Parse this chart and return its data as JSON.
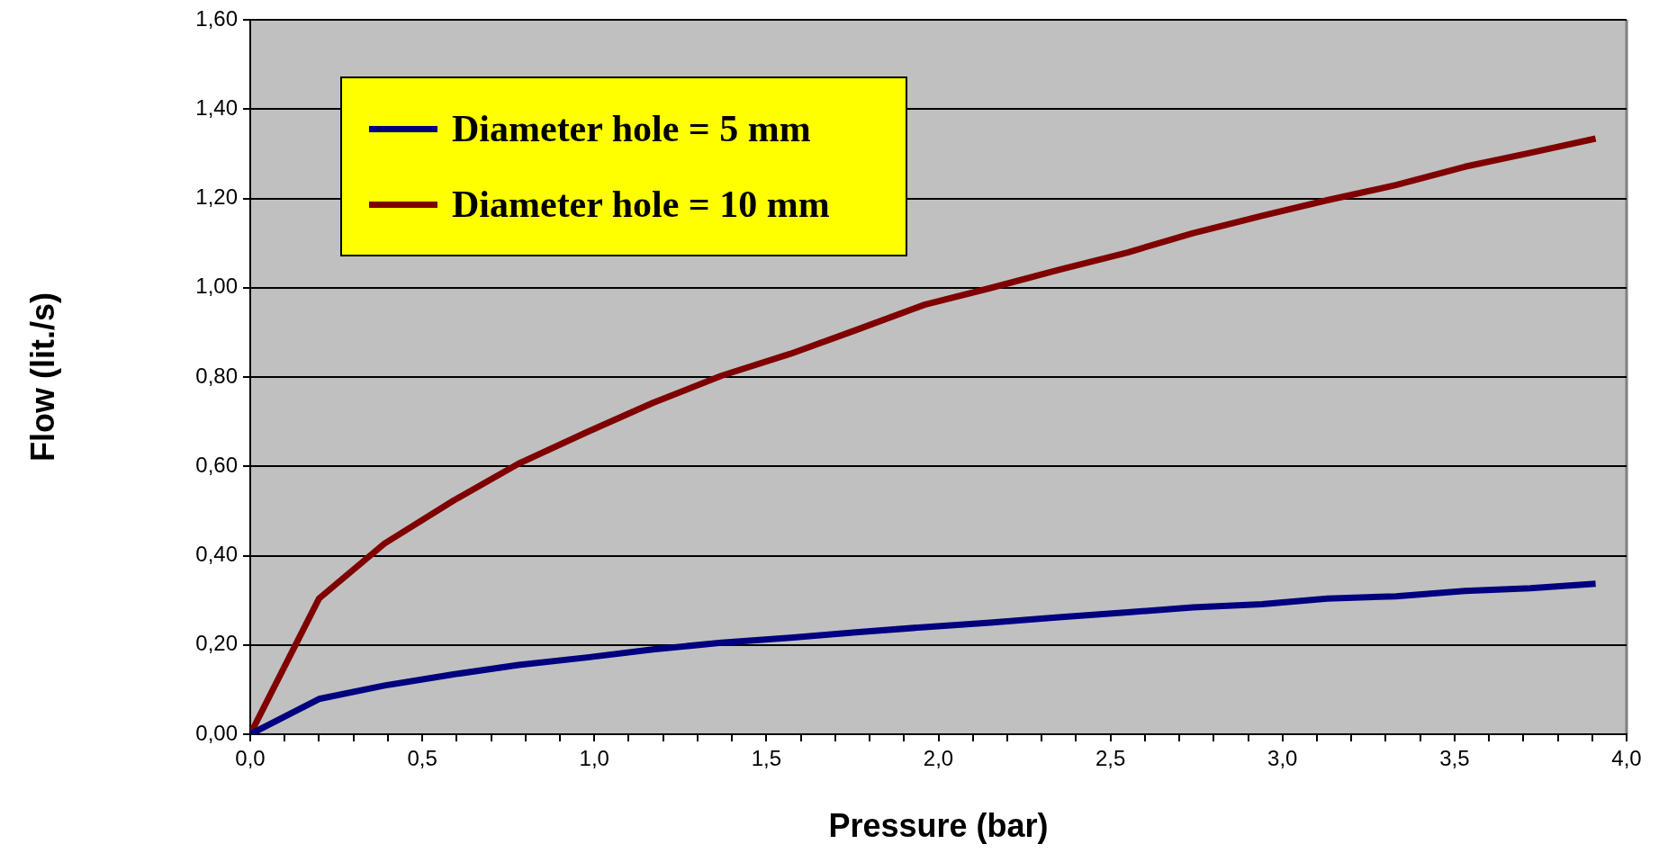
{
  "chart_data": {
    "type": "line",
    "xlabel": "Pressure (bar)",
    "ylabel": "Flow (lit./s)",
    "x": [
      0,
      0.2,
      0.39,
      0.59,
      0.78,
      0.98,
      1.17,
      1.37,
      1.57,
      1.76,
      1.96,
      2.15,
      2.35,
      2.55,
      2.74,
      2.94,
      3.13,
      3.33,
      3.53,
      3.72,
      3.91
    ],
    "series": [
      {
        "name": "Diameter hole = 5 mm",
        "color": "#000080",
        "values": [
          0,
          0.079,
          0.109,
          0.134,
          0.155,
          0.172,
          0.19,
          0.205,
          0.216,
          0.228,
          0.24,
          0.25,
          0.262,
          0.273,
          0.284,
          0.291,
          0.304,
          0.309,
          0.321,
          0.327,
          0.337
        ]
      },
      {
        "name": "Diameter hole = 10 mm",
        "color": "#800000",
        "values": [
          0,
          0.304,
          0.427,
          0.523,
          0.606,
          0.677,
          0.742,
          0.803,
          0.852,
          0.905,
          0.962,
          0.999,
          1.04,
          1.079,
          1.122,
          1.161,
          1.196,
          1.23,
          1.271,
          1.302,
          1.334
        ]
      }
    ],
    "xlim": [
      0,
      4
    ],
    "xticks": [
      {
        "value": 0,
        "label": "0,0"
      },
      {
        "value": 0.1,
        "label": null
      },
      {
        "value": 0.2,
        "label": null
      },
      {
        "value": 0.3,
        "label": null
      },
      {
        "value": 0.4,
        "label": null
      },
      {
        "value": 0.5,
        "label": "0,5"
      },
      {
        "value": 0.6,
        "label": null
      },
      {
        "value": 0.7,
        "label": null
      },
      {
        "value": 0.8,
        "label": null
      },
      {
        "value": 0.9,
        "label": null
      },
      {
        "value": 1,
        "label": "1,0"
      },
      {
        "value": 1.1,
        "label": null
      },
      {
        "value": 1.2,
        "label": null
      },
      {
        "value": 1.3,
        "label": null
      },
      {
        "value": 1.4,
        "label": null
      },
      {
        "value": 1.5,
        "label": "1,5"
      },
      {
        "value": 1.6,
        "label": null
      },
      {
        "value": 1.7,
        "label": null
      },
      {
        "value": 1.8,
        "label": null
      },
      {
        "value": 1.9,
        "label": null
      },
      {
        "value": 2,
        "label": "2,0"
      },
      {
        "value": 2.1,
        "label": null
      },
      {
        "value": 2.2,
        "label": null
      },
      {
        "value": 2.3,
        "label": null
      },
      {
        "value": 2.4,
        "label": null
      },
      {
        "value": 2.5,
        "label": "2,5"
      },
      {
        "value": 2.6,
        "label": null
      },
      {
        "value": 2.7,
        "label": null
      },
      {
        "value": 2.8,
        "label": null
      },
      {
        "value": 2.9,
        "label": null
      },
      {
        "value": 3,
        "label": "3,0"
      },
      {
        "value": 3.1,
        "label": null
      },
      {
        "value": 3.2,
        "label": null
      },
      {
        "value": 3.3,
        "label": null
      },
      {
        "value": 3.4,
        "label": null
      },
      {
        "value": 3.5,
        "label": "3,5"
      },
      {
        "value": 3.6,
        "label": null
      },
      {
        "value": 3.7,
        "label": null
      },
      {
        "value": 3.8,
        "label": null
      },
      {
        "value": 3.9,
        "label": null
      },
      {
        "value": 4,
        "label": "4,0"
      }
    ],
    "ylim": [
      0,
      1.6
    ],
    "yticks": [
      {
        "value": 0,
        "label": "0,00"
      },
      {
        "value": 0.2,
        "label": "0,20"
      },
      {
        "value": 0.4,
        "label": "0,40"
      },
      {
        "value": 0.6,
        "label": "0,60"
      },
      {
        "value": 0.8,
        "label": "0,80"
      },
      {
        "value": 1,
        "label": "1,00"
      },
      {
        "value": 1.2,
        "label": "1,20"
      },
      {
        "value": 1.4,
        "label": "1,40"
      },
      {
        "value": 1.6,
        "label": "1,60"
      }
    ],
    "grid": "y",
    "legend": "top left",
    "marker": "none",
    "line_style": "solid"
  }
}
